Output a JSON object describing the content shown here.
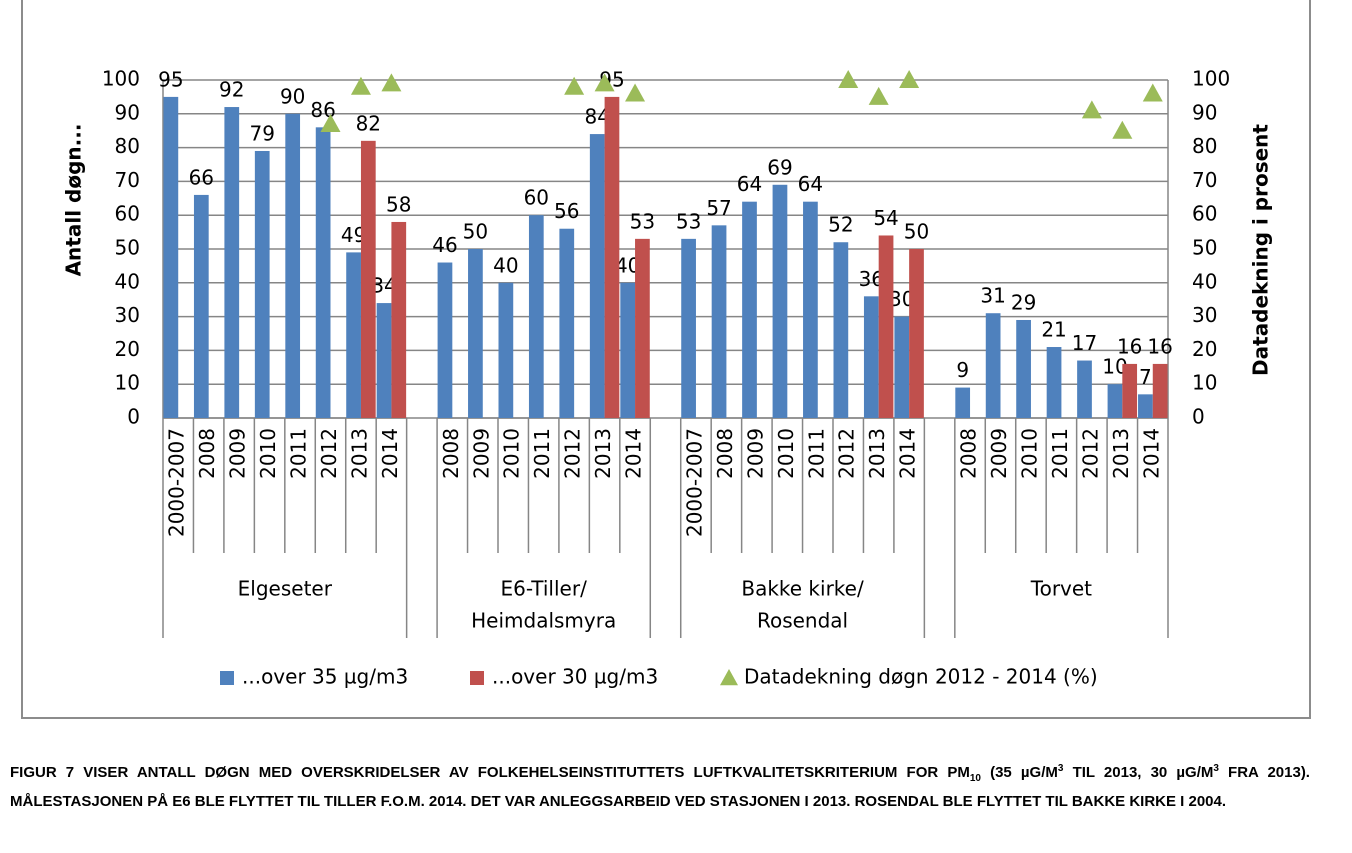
{
  "chart_data": {
    "type": "bar",
    "y_label": "Antall døgn...",
    "y2_label": "Datadekning i prosent",
    "categories": [
      "2000-2007",
      "2008",
      "2009",
      "2010",
      "2011",
      "2012",
      "2013",
      "2014",
      null,
      "2008",
      "2009",
      "2010",
      "2011",
      "2012",
      "2013",
      "2014",
      null,
      "2000-2007",
      "2008",
      "2009",
      "2010",
      "2011",
      "2012",
      "2013",
      "2014",
      null,
      "2008",
      "2009",
      "2010",
      "2011",
      "2012",
      "2013",
      "2014"
    ],
    "groups": [
      [
        "Elgeseter"
      ],
      [
        "E6-Tiller/",
        "Heimdalsmyra"
      ],
      [
        "Bakke kirke/",
        "Rosendal"
      ],
      [
        "Torvet"
      ]
    ],
    "series": [
      {
        "name": "...over 35 µg/m3",
        "color": "#4f81bd",
        "type": "bar",
        "values": [
          95,
          66,
          92,
          79,
          90,
          86,
          49,
          34,
          null,
          46,
          50,
          40,
          60,
          56,
          84,
          40,
          null,
          53,
          57,
          64,
          69,
          64,
          52,
          36,
          30,
          null,
          9,
          31,
          29,
          21,
          17,
          10,
          7
        ]
      },
      {
        "name": "...over 30 µg/m3",
        "color": "#c0504d",
        "type": "bar",
        "values": [
          null,
          null,
          null,
          null,
          null,
          null,
          82,
          58,
          null,
          null,
          null,
          null,
          null,
          null,
          95,
          53,
          null,
          null,
          null,
          null,
          null,
          null,
          null,
          54,
          50,
          null,
          null,
          null,
          null,
          null,
          null,
          16,
          16
        ]
      },
      {
        "name": "Datadekning døgn 2012 - 2014 (%)",
        "color": "#9bbb59",
        "type": "triangle",
        "axis": "y2",
        "values": [
          null,
          null,
          null,
          null,
          null,
          87,
          98,
          99,
          null,
          null,
          null,
          null,
          null,
          98,
          99,
          96,
          null,
          null,
          null,
          null,
          null,
          null,
          100,
          95,
          100,
          null,
          null,
          null,
          null,
          null,
          91,
          85,
          96
        ]
      }
    ],
    "ylim": [
      0,
      100
    ],
    "yticks": [
      0,
      10,
      20,
      30,
      40,
      50,
      60,
      70,
      80,
      90,
      100
    ],
    "y2lim": [
      0,
      100
    ],
    "y2ticks": [
      0,
      10,
      20,
      30,
      40,
      50,
      60,
      70,
      80,
      90,
      100
    ],
    "grid": true
  },
  "caption": [
    "FIGUR 7 VISER ANTALL DØGN MED OVERSKRIDELSER AV FOLKEHELSEINSTITUTTETS LUFTKVALITETSKRITERIUM FOR PM",
    "10",
    " (35 µG/M",
    "3",
    " TIL 2013, 30 µG/M",
    "3",
    " FRA 2013). MÅLESTASJONEN PÅ E6 BLE FLYTTET TIL TILLER F.O.M. 2014. DET VAR ANLEGGSARBEID VED STASJONEN I 2013. ROSENDAL BLE FLYTTET TIL BAKKE KIRKE I 2004."
  ]
}
